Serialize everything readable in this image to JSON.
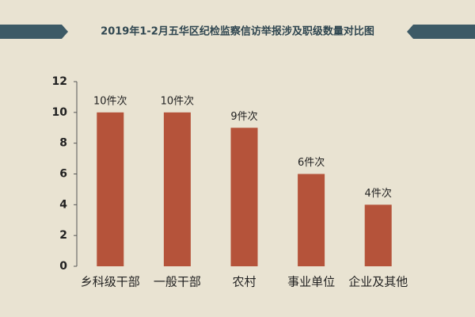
{
  "chart_data": {
    "type": "bar",
    "title": "2019年1-2月五华区纪检监察信访举报涉及职级数量对比图",
    "categories": [
      "乡科级干部",
      "一般干部",
      "农村",
      "事业单位",
      "企业及其他"
    ],
    "values": [
      10,
      10,
      9,
      6,
      4
    ],
    "value_labels": [
      "10件次",
      "10件次",
      "9件次",
      "6件次",
      "4件次"
    ],
    "color": "#b5533a",
    "ylim": [
      0,
      12
    ],
    "yticks": [
      0,
      2,
      4,
      6,
      8,
      10,
      12
    ],
    "grid": false
  }
}
